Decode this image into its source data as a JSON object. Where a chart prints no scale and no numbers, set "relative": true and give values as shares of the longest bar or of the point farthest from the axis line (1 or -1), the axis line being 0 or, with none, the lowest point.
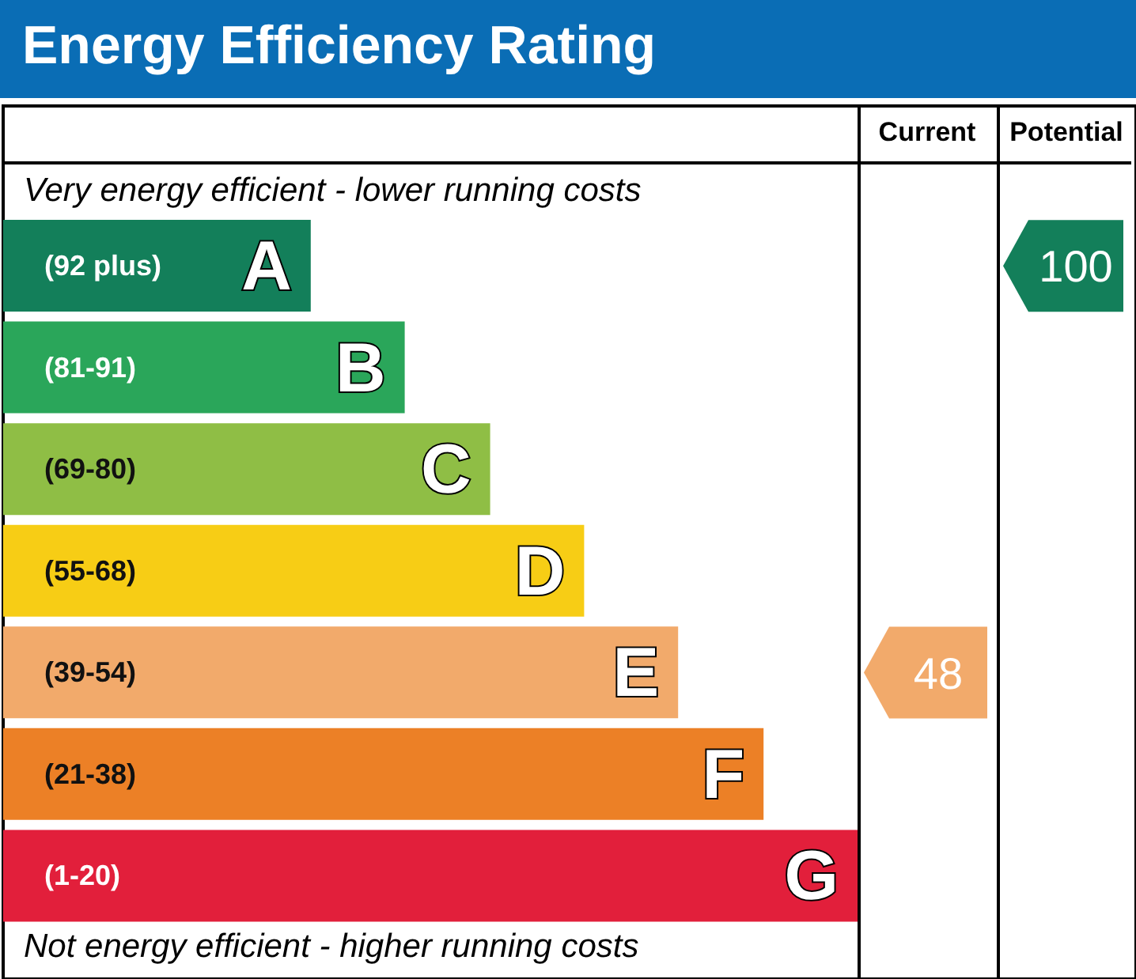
{
  "chart_data": {
    "type": "bar",
    "orientation": "horizontal",
    "relative": true,
    "title": "Energy Efficiency Rating",
    "categories": [
      "(92 plus)",
      "(81-91)",
      "(69-80)",
      "(55-68)",
      "(39-54)",
      "(21-38)",
      "(1-20)"
    ],
    "values": [
      0.36,
      0.47,
      0.57,
      0.68,
      0.79,
      0.89,
      1.0
    ],
    "colors": [
      "#137f5a",
      "#2aa65a",
      "#8fbe45",
      "#f7cd15",
      "#f2aa6b",
      "#ec8026",
      "#e21f3b"
    ],
    "annotations": [
      "Very energy efficient - lower running costs",
      "Not energy efficient - higher running costs",
      "Current",
      "Potential",
      "A",
      "B",
      "C",
      "D",
      "E",
      "F",
      "G",
      "48",
      "100"
    ]
  }
}
